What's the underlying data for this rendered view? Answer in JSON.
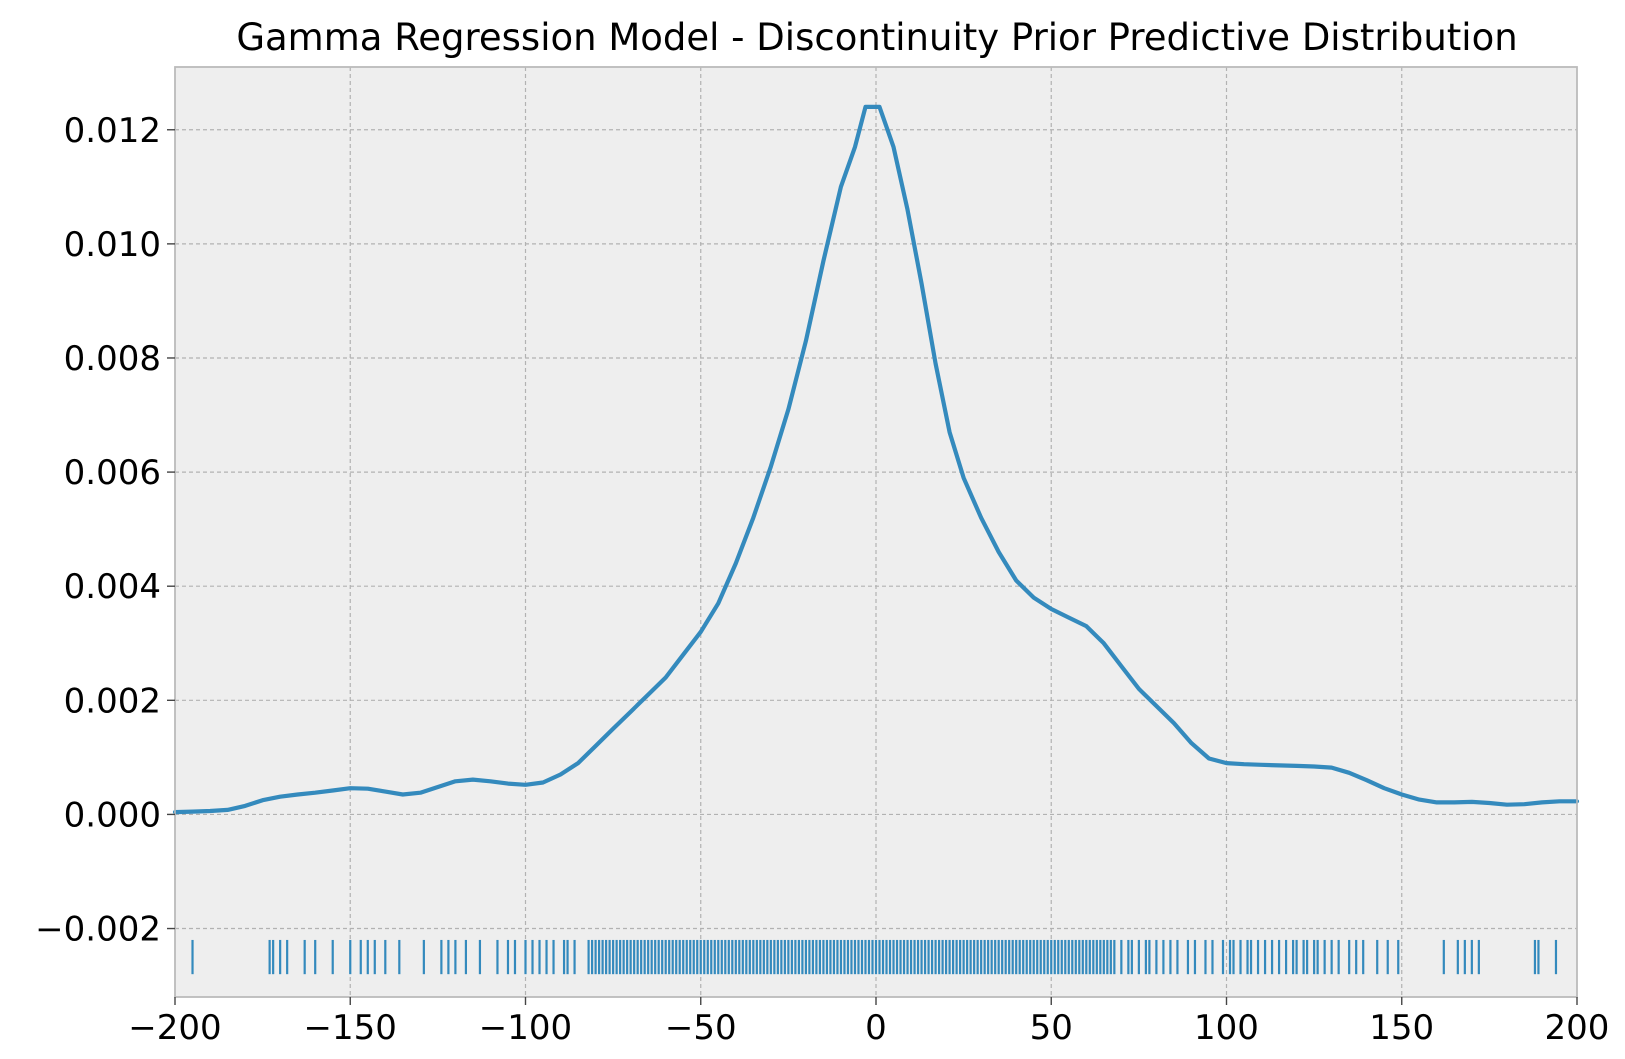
{
  "chart_data": {
    "type": "line",
    "title": "Gamma Regression Model - Discontinuity Prior Predictive Distribution",
    "xlabel": "",
    "ylabel": "",
    "xlim": [
      -200,
      200
    ],
    "ylim": [
      -0.0032,
      0.0131
    ],
    "grid": true,
    "legend": "none",
    "x_ticks": [
      -200,
      -150,
      -100,
      -50,
      0,
      50,
      100,
      150,
      200
    ],
    "x_tick_labels": [
      "−200",
      "−150",
      "−100",
      "−50",
      "0",
      "50",
      "100",
      "150",
      "200"
    ],
    "y_ticks": [
      -0.002,
      0.0,
      0.002,
      0.004,
      0.006,
      0.008,
      0.01,
      0.012
    ],
    "y_tick_labels": [
      "−0.002",
      "0.000",
      "0.002",
      "0.004",
      "0.006",
      "0.008",
      "0.010",
      "0.012"
    ],
    "series": [
      {
        "color": "#348abd",
        "x": [
          -200,
          -195,
          -190,
          -185,
          -180,
          -175,
          -170,
          -165,
          -160,
          -155,
          -150,
          -145,
          -140,
          -135,
          -130,
          -125,
          -120,
          -115,
          -110,
          -105,
          -100,
          -95,
          -90,
          -85,
          -80,
          -75,
          -70,
          -65,
          -60,
          -55,
          -50,
          -45,
          -40,
          -35,
          -30,
          -25,
          -20,
          -15,
          -10,
          -6,
          -3,
          1,
          5,
          9,
          13,
          17,
          21,
          25,
          30,
          35,
          40,
          45,
          50,
          55,
          60,
          65,
          70,
          75,
          80,
          85,
          90,
          95,
          100,
          105,
          110,
          115,
          120,
          125,
          130,
          135,
          140,
          145,
          150,
          155,
          160,
          165,
          170,
          175,
          180,
          185,
          190,
          195,
          200
        ],
        "y": [
          4e-05,
          5e-05,
          6e-05,
          8e-05,
          0.00015,
          0.00025,
          0.00031,
          0.00035,
          0.00038,
          0.00042,
          0.00046,
          0.00045,
          0.0004,
          0.00035,
          0.00038,
          0.00048,
          0.00058,
          0.00061,
          0.00058,
          0.00054,
          0.00052,
          0.00056,
          0.0007,
          0.0009,
          0.0012,
          0.0015,
          0.0018,
          0.0021,
          0.0024,
          0.0028,
          0.0032,
          0.0037,
          0.0044,
          0.0052,
          0.0061,
          0.0071,
          0.0083,
          0.0097,
          0.011,
          0.0117,
          0.0124,
          0.0124,
          0.0117,
          0.0106,
          0.0093,
          0.0079,
          0.0067,
          0.0059,
          0.0052,
          0.0046,
          0.0041,
          0.0038,
          0.0036,
          0.00345,
          0.0033,
          0.003,
          0.0026,
          0.0022,
          0.0019,
          0.0016,
          0.00125,
          0.00098,
          0.0009,
          0.00088,
          0.00087,
          0.00086,
          0.00085,
          0.00084,
          0.00082,
          0.00073,
          0.0006,
          0.00046,
          0.00035,
          0.00026,
          0.00021,
          0.00021,
          0.00022,
          0.0002,
          0.00017,
          0.00018,
          0.00021,
          0.00023,
          0.00023
        ]
      }
    ],
    "rug": {
      "color": "#348abd",
      "y_top": -0.0022,
      "y_bottom": -0.0028,
      "x": [
        -195,
        -173,
        -172,
        -170,
        -168,
        -163,
        -160,
        -155,
        -150,
        -147,
        -145,
        -143,
        -140,
        -136,
        -129,
        -124,
        -122,
        -120,
        -117,
        -113,
        -108,
        -105,
        -103,
        -100,
        -98,
        -96,
        -94,
        -92,
        -89,
        -88,
        -86,
        -82,
        -81,
        -80,
        -79,
        -78,
        -77,
        -76,
        -75,
        -74,
        -73,
        -72,
        -71,
        -70,
        -69,
        -68,
        -67,
        -66,
        -65,
        -64,
        -63,
        -62,
        -61,
        -60,
        -59,
        -58,
        -57,
        -56,
        -55,
        -54,
        -53,
        -52,
        -51,
        -50,
        -49,
        -48,
        -47,
        -46,
        -45,
        -44,
        -43,
        -42,
        -41,
        -40,
        -39,
        -38,
        -37,
        -36,
        -35,
        -34,
        -33,
        -32,
        -31,
        -30,
        -29,
        -28,
        -27,
        -26,
        -25,
        -24,
        -23,
        -22,
        -21,
        -20,
        -19,
        -18,
        -17,
        -16,
        -15,
        -14,
        -13,
        -12,
        -11,
        -10,
        -9,
        -8,
        -7,
        -6,
        -5,
        -4,
        -3,
        -2,
        -1,
        0,
        1,
        2,
        3,
        4,
        5,
        6,
        7,
        8,
        9,
        10,
        11,
        12,
        13,
        14,
        15,
        16,
        17,
        18,
        19,
        20,
        21,
        22,
        23,
        24,
        25,
        26,
        27,
        28,
        29,
        30,
        31,
        32,
        33,
        34,
        35,
        36,
        37,
        38,
        39,
        40,
        41,
        42,
        43,
        44,
        45,
        46,
        47,
        48,
        49,
        50,
        51,
        52,
        53,
        54,
        55,
        56,
        57,
        58,
        59,
        60,
        61,
        62,
        63,
        64,
        65,
        66,
        67,
        68,
        70,
        72,
        73,
        75,
        77,
        78,
        80,
        82,
        84,
        86,
        89,
        91,
        94,
        96,
        99,
        101,
        102,
        104,
        106,
        107,
        109,
        111,
        113,
        115,
        117,
        119,
        120,
        122,
        123,
        125,
        126,
        128,
        130,
        132,
        135,
        137,
        139,
        143,
        146,
        149,
        162,
        166,
        168,
        170,
        172,
        188,
        189,
        194
      ]
    }
  }
}
